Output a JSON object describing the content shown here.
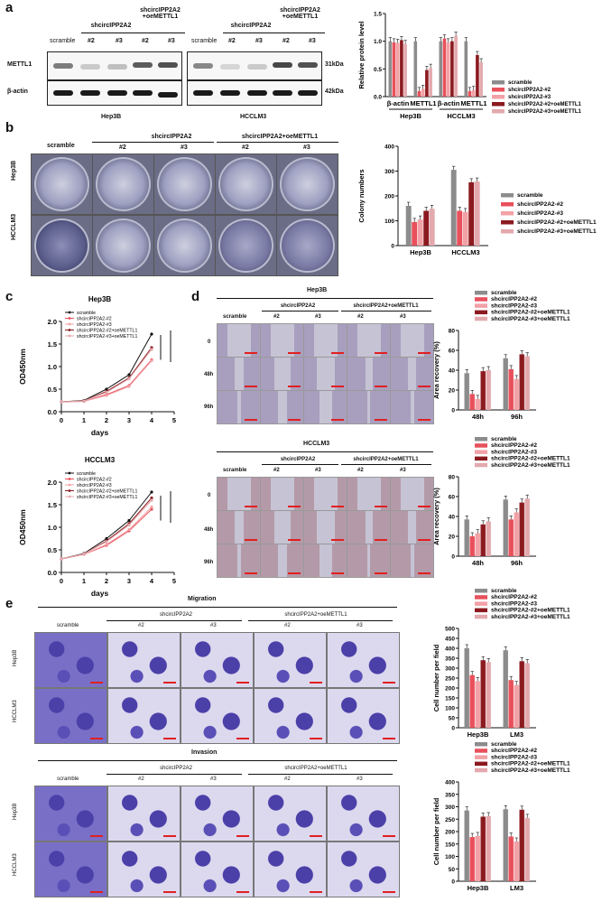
{
  "panel_labels": {
    "a": "a",
    "b": "b",
    "c": "c",
    "d": "d",
    "e": "e"
  },
  "colors": {
    "scramble": "#8c8c8c",
    "sh2": "#e8505b",
    "sh3": "#f2a1a6",
    "sh2oe": "#8b1a1f",
    "sh3oe": "#e3a9ad"
  },
  "legend": [
    "scramble",
    "shcircIPP2A2-#2",
    "shcircIPP2A2-#3",
    "shcircIPP2A2-#2+oeMETTL1",
    "shcircIPP2A2-#3+oeMETTL1"
  ],
  "a": {
    "hep3b": {
      "scramble": "scramble",
      "group1": "shcircIPP2A2",
      "group2": "shcircIPP2A2\n+oeMETTL1",
      "n2": "#2",
      "n3": "#3",
      "n2b": "#2",
      "n3b": "#3",
      "cell": "Hep3B"
    },
    "hcclm3": {
      "scramble": "scramble",
      "group1": "shcircIPP2A2",
      "group2": "shcircIPP2A2\n+oeMETTL1",
      "n2": "#2",
      "n3": "#3",
      "n2b": "#2",
      "n3b": "#3",
      "cell": "HCCLM3"
    },
    "row1": "METTL1",
    "row2": "β-actin",
    "kda1": "31kDa",
    "kda2": "42kDa"
  },
  "b": {
    "scramble": "scramble",
    "g1": "shcircIPP2A2",
    "g2": "shcircIPP2A2+oeMETTL1",
    "n2": "#2",
    "n3": "#3",
    "n2b": "#2",
    "n3b": "#3",
    "row1": "Hep3B",
    "row2": "HCCLM3"
  },
  "c_legend": [
    "scramble",
    "shcircIPP2A2-#2",
    "shcircIPP2A2-#3",
    "shcircIPP2A2-#2+oeMETTL1",
    "shcircIPP2A2-#3+oeMETTL1"
  ],
  "d": {
    "top": "Hep3B",
    "bottom": "HCCLM3",
    "scramble": "scramble",
    "g1": "shcircIPP2A2",
    "g2": "shcircIPP2A2+oeMETTL1",
    "n2": "#2",
    "n3": "#3",
    "n2b": "#2",
    "n3b": "#3",
    "t0": "0",
    "t48": "48h",
    "t96": "96h"
  },
  "e": {
    "migration": "Migration",
    "invasion": "Invasion",
    "scramble": "scramble",
    "g1": "shcircIPP2A2",
    "g2": "shcircIPP2A2+oeMETTL1",
    "n2": "#2",
    "n3": "#3",
    "n2b": "#2",
    "n3b": "#3",
    "row1": "Hep3B",
    "row2": "HCCLM3"
  },
  "chart_data": [
    {
      "id": "a-bar",
      "type": "bar",
      "title": "",
      "xlabel": "",
      "ylabel": "Relative protein level",
      "ylim": [
        0,
        1.5
      ],
      "yticks": [
        "0.0",
        "0.5",
        "1.0",
        "1.5"
      ],
      "categories": [
        "β-actin",
        "METTL1",
        "β-actin",
        "METTL1"
      ],
      "groups": [
        "Hep3B",
        "HCCLM3"
      ],
      "series": [
        {
          "name": "scramble",
          "values": [
            1.0,
            1.0,
            1.0,
            1.0
          ]
        },
        {
          "name": "shcircIPP2A2-#2",
          "values": [
            0.98,
            0.1,
            1.05,
            0.1
          ]
        },
        {
          "name": "shcircIPP2A2-#3",
          "values": [
            0.97,
            0.14,
            0.98,
            0.12
          ]
        },
        {
          "name": "shcircIPP2A2-#2+oeMETTL1",
          "values": [
            1.02,
            0.48,
            1.0,
            0.75
          ]
        },
        {
          "name": "shcircIPP2A2-#3+oeMETTL1",
          "values": [
            0.95,
            0.52,
            1.1,
            0.62
          ]
        }
      ]
    },
    {
      "id": "b-bar",
      "type": "bar",
      "ylabel": "Colony numbers",
      "ylim": [
        0,
        400
      ],
      "yticks": [
        "0",
        "100",
        "200",
        "300",
        "400"
      ],
      "categories": [
        "Hep3B",
        "HCCLM3"
      ],
      "series": [
        {
          "name": "scramble",
          "values": [
            160,
            305
          ]
        },
        {
          "name": "shcircIPP2A2-#2",
          "values": [
            95,
            140
          ]
        },
        {
          "name": "shcircIPP2A2-#3",
          "values": [
            105,
            135
          ]
        },
        {
          "name": "shcircIPP2A2-#2+oeMETTL1",
          "values": [
            140,
            255
          ]
        },
        {
          "name": "shcircIPP2A2-#3+oeMETTL1",
          "values": [
            148,
            258
          ]
        }
      ]
    },
    {
      "id": "c-line-hep3b",
      "type": "line",
      "title": "Hep3B",
      "xlabel": "days",
      "ylabel": "OD450nm",
      "ylim": [
        0,
        2.0
      ],
      "xlim": [
        0,
        5
      ],
      "yticks": [
        "0.0",
        "0.5",
        "1.0",
        "1.5",
        "2.0"
      ],
      "xticks": [
        "0",
        "1",
        "2",
        "3",
        "4",
        "5"
      ],
      "x": [
        0,
        1,
        2,
        3,
        4
      ],
      "series": [
        {
          "name": "scramble",
          "values": [
            0.22,
            0.25,
            0.5,
            0.82,
            1.72
          ]
        },
        {
          "name": "shcircIPP2A2-#2",
          "values": [
            0.22,
            0.23,
            0.38,
            0.58,
            1.15
          ]
        },
        {
          "name": "shcircIPP2A2-#3",
          "values": [
            0.22,
            0.23,
            0.36,
            0.56,
            1.13
          ]
        },
        {
          "name": "shcircIPP2A2-#2+oeMETTL1",
          "values": [
            0.22,
            0.24,
            0.45,
            0.75,
            1.42
          ]
        },
        {
          "name": "shcircIPP2A2-#3+oeMETTL1",
          "values": [
            0.22,
            0.24,
            0.43,
            0.73,
            1.38
          ]
        }
      ]
    },
    {
      "id": "c-line-hcclm3",
      "type": "line",
      "title": "HCCLM3",
      "xlabel": "days",
      "ylabel": "OD450nm",
      "ylim": [
        0,
        2.0
      ],
      "xlim": [
        0,
        5
      ],
      "yticks": [
        "0.0",
        "0.5",
        "1.0",
        "1.5",
        "2.0"
      ],
      "xticks": [
        "0",
        "1",
        "2",
        "3",
        "4",
        "5"
      ],
      "x": [
        0,
        1,
        2,
        3,
        4
      ],
      "series": [
        {
          "name": "scramble",
          "values": [
            0.3,
            0.42,
            0.75,
            1.15,
            1.78
          ]
        },
        {
          "name": "shcircIPP2A2-#2",
          "values": [
            0.3,
            0.4,
            0.6,
            0.92,
            1.4
          ]
        },
        {
          "name": "shcircIPP2A2-#3",
          "values": [
            0.3,
            0.4,
            0.62,
            0.95,
            1.45
          ]
        },
        {
          "name": "shcircIPP2A2-#2+oeMETTL1",
          "values": [
            0.3,
            0.41,
            0.7,
            1.08,
            1.65
          ]
        },
        {
          "name": "shcircIPP2A2-#3+oeMETTL1",
          "values": [
            0.3,
            0.41,
            0.68,
            1.05,
            1.6
          ]
        }
      ]
    },
    {
      "id": "d-bar-hep3b",
      "type": "bar",
      "ylabel": "Area recovery (%)",
      "ylim": [
        0,
        80
      ],
      "yticks": [
        "0",
        "20",
        "40",
        "60",
        "80"
      ],
      "categories": [
        "48h",
        "96h"
      ],
      "series": [
        {
          "name": "scramble",
          "values": [
            37,
            52
          ]
        },
        {
          "name": "shcircIPP2A2-#2",
          "values": [
            16,
            41
          ]
        },
        {
          "name": "shcircIPP2A2-#3",
          "values": [
            11,
            31
          ]
        },
        {
          "name": "shcircIPP2A2-#2+oeMETTL1",
          "values": [
            39,
            56
          ]
        },
        {
          "name": "shcircIPP2A2-#3+oeMETTL1",
          "values": [
            40,
            54
          ]
        }
      ]
    },
    {
      "id": "d-bar-hcclm3",
      "type": "bar",
      "ylabel": "Area recovery (%)",
      "ylim": [
        0,
        80
      ],
      "yticks": [
        "0",
        "20",
        "40",
        "60",
        "80"
      ],
      "categories": [
        "48h",
        "96h"
      ],
      "series": [
        {
          "name": "scramble",
          "values": [
            37,
            57
          ]
        },
        {
          "name": "shcircIPP2A2-#2",
          "values": [
            20,
            37
          ]
        },
        {
          "name": "shcircIPP2A2-#3",
          "values": [
            23,
            44
          ]
        },
        {
          "name": "shcircIPP2A2-#2+oeMETTL1",
          "values": [
            32,
            54
          ]
        },
        {
          "name": "shcircIPP2A2-#3+oeMETTL1",
          "values": [
            35,
            58
          ]
        }
      ]
    },
    {
      "id": "e-bar-migration",
      "type": "bar",
      "ylabel": "Cell number per field",
      "ylim": [
        0,
        500
      ],
      "yticks": [
        "0",
        "50",
        "100",
        "150",
        "200",
        "250",
        "300",
        "350",
        "400",
        "450",
        "500"
      ],
      "categories": [
        "Hep3B",
        "LM3"
      ],
      "series": [
        {
          "name": "scramble",
          "values": [
            400,
            390
          ]
        },
        {
          "name": "shcircIPP2A2-#2",
          "values": [
            265,
            240
          ]
        },
        {
          "name": "shcircIPP2A2-#3",
          "values": [
            235,
            215
          ]
        },
        {
          "name": "shcircIPP2A2-#2+oeMETTL1",
          "values": [
            340,
            335
          ]
        },
        {
          "name": "shcircIPP2A2-#3+oeMETTL1",
          "values": [
            330,
            325
          ]
        }
      ]
    },
    {
      "id": "e-bar-invasion",
      "type": "bar",
      "ylabel": "Cell number per field",
      "ylim": [
        0,
        400
      ],
      "yticks": [
        "0",
        "50",
        "100",
        "150",
        "200",
        "250",
        "300",
        "350",
        "400"
      ],
      "categories": [
        "Hep3B",
        "LM3"
      ],
      "series": [
        {
          "name": "scramble",
          "values": [
            285,
            290
          ]
        },
        {
          "name": "shcircIPP2A2-#2",
          "values": [
            178,
            180
          ]
        },
        {
          "name": "shcircIPP2A2-#3",
          "values": [
            182,
            160
          ]
        },
        {
          "name": "shcircIPP2A2-#2+oeMETTL1",
          "values": [
            260,
            288
          ]
        },
        {
          "name": "shcircIPP2A2-#3+oeMETTL1",
          "values": [
            262,
            255
          ]
        }
      ]
    }
  ]
}
